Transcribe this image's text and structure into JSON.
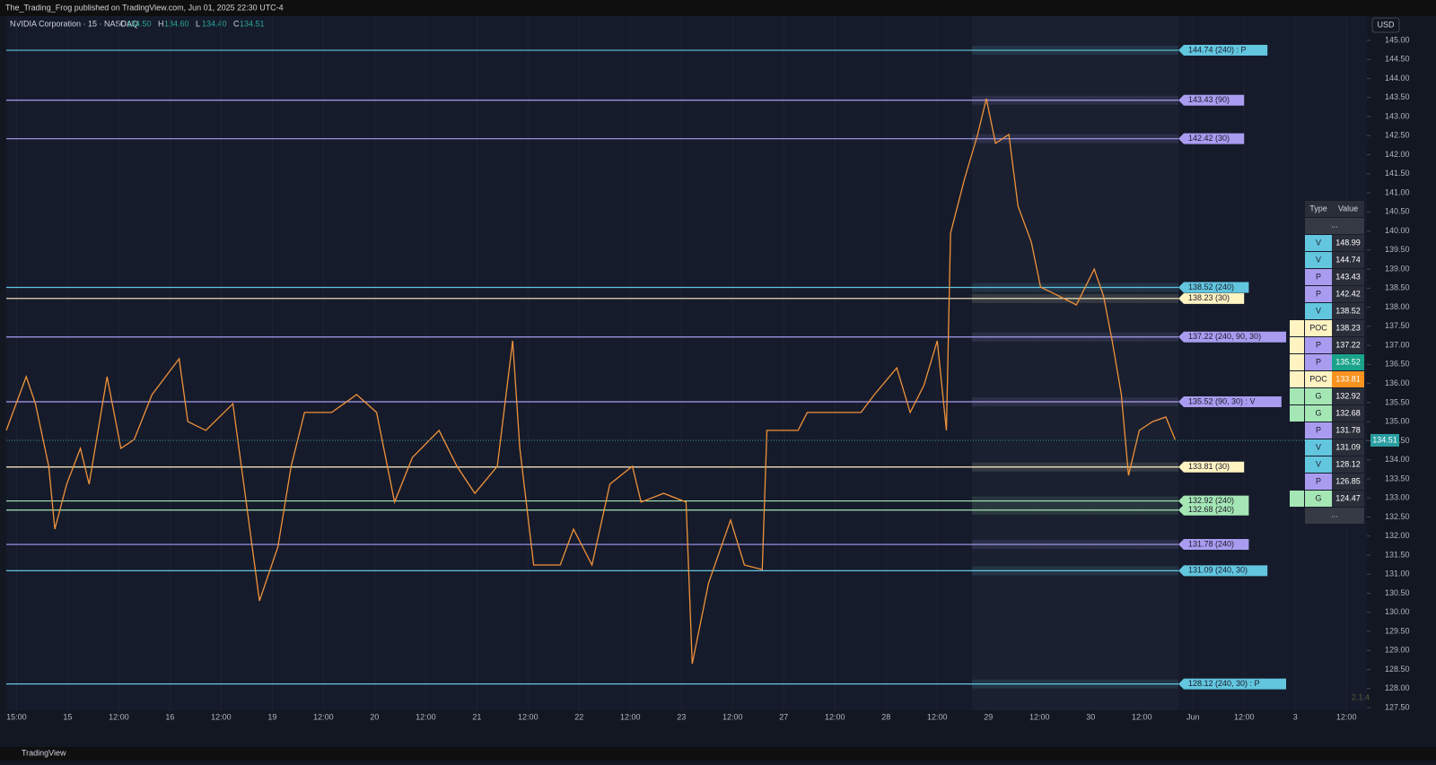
{
  "header": {
    "publisher": "The_Trading_Frog published on TradingView.com, Jun 01, 2025 22:30 UTC-4",
    "footer": "TradingView",
    "version": "2.1.4"
  },
  "chart_data": {
    "type": "line",
    "title": "NVIDIA Corporation · 15 · NASDAQ",
    "ohlc": [
      {
        "key": "O",
        "text": "134.50"
      },
      {
        "key": "H",
        "text": "134.60"
      },
      {
        "key": "L",
        "text": "134.40"
      },
      {
        "key": "C",
        "text": "134.51"
      }
    ],
    "currency": "USD",
    "last_price": {
      "value": 134.51,
      "label": "134.51",
      "color": "#2a9ea0"
    },
    "ylim": [
      127.5,
      145.0
    ],
    "yticks": [
      {
        "value": 127.5,
        "label": "127.50"
      },
      {
        "value": 128,
        "label": "128.00"
      },
      {
        "value": 128.5,
        "label": "128.50"
      },
      {
        "value": 129,
        "label": "129.00"
      },
      {
        "value": 129.5,
        "label": "129.50"
      },
      {
        "value": 130,
        "label": "130.00"
      },
      {
        "value": 130.5,
        "label": "130.50"
      },
      {
        "value": 131,
        "label": "131.00"
      },
      {
        "value": 131.5,
        "label": "131.50"
      },
      {
        "value": 132,
        "label": "132.00"
      },
      {
        "value": 132.5,
        "label": "132.50"
      },
      {
        "value": 133,
        "label": "133.00"
      },
      {
        "value": 133.5,
        "label": "133.50"
      },
      {
        "value": 134,
        "label": "134.00"
      },
      {
        "value": 134.5,
        "label": "134.50"
      },
      {
        "value": 135,
        "label": "135.00"
      },
      {
        "value": 135.5,
        "label": "135.50"
      },
      {
        "value": 136,
        "label": "136.00"
      },
      {
        "value": 136.5,
        "label": "136.50"
      },
      {
        "value": 137,
        "label": "137.00"
      },
      {
        "value": 137.5,
        "label": "137.50"
      },
      {
        "value": 138,
        "label": "138.00"
      },
      {
        "value": 138.5,
        "label": "138.50"
      },
      {
        "value": 139,
        "label": "139.00"
      },
      {
        "value": 139.5,
        "label": "139.50"
      },
      {
        "value": 140,
        "label": "140.00"
      },
      {
        "value": 140.5,
        "label": "140.50"
      },
      {
        "value": 141,
        "label": "141.00"
      },
      {
        "value": 141.5,
        "label": "141.50"
      },
      {
        "value": 142,
        "label": "142.00"
      },
      {
        "value": 142.5,
        "label": "142.50"
      },
      {
        "value": 143,
        "label": "143.00"
      },
      {
        "value": 143.5,
        "label": "143.50"
      },
      {
        "value": 144,
        "label": "144.00"
      },
      {
        "value": 144.5,
        "label": "144.50"
      },
      {
        "value": 145,
        "label": "145.00"
      }
    ],
    "xlim": [
      -0.2,
      26.4
    ],
    "xticks": [
      {
        "value": 0,
        "label": "15:00"
      },
      {
        "value": 1,
        "label": "15"
      },
      {
        "value": 2,
        "label": "12:00"
      },
      {
        "value": 3,
        "label": "16"
      },
      {
        "value": 4,
        "label": "12:00"
      },
      {
        "value": 5,
        "label": "19"
      },
      {
        "value": 6,
        "label": "12:00"
      },
      {
        "value": 7,
        "label": "20"
      },
      {
        "value": 8,
        "label": "12:00"
      },
      {
        "value": 9,
        "label": "21"
      },
      {
        "value": 10,
        "label": "12:00"
      },
      {
        "value": 11,
        "label": "22"
      },
      {
        "value": 12,
        "label": "12:00"
      },
      {
        "value": 13,
        "label": "23"
      },
      {
        "value": 14,
        "label": "12:00"
      },
      {
        "value": 15,
        "label": "27"
      },
      {
        "value": 16,
        "label": "12:00"
      },
      {
        "value": 17,
        "label": "28"
      },
      {
        "value": 18,
        "label": "12:00"
      },
      {
        "value": 19,
        "label": "29"
      },
      {
        "value": 20,
        "label": "12:00"
      },
      {
        "value": 21,
        "label": "30"
      },
      {
        "value": 22,
        "label": "12:00"
      },
      {
        "value": 23,
        "label": "Jun"
      },
      {
        "value": 24,
        "label": "12:00"
      },
      {
        "value": 25,
        "label": "3"
      },
      {
        "value": 26,
        "label": "12:00"
      }
    ],
    "series": [
      {
        "color": "#f0923a",
        "x": [
          -0.2,
          0.19,
          0.37,
          0.63,
          0.75,
          0.98,
          1.25,
          1.42,
          1.77,
          2.04,
          2.3,
          2.65,
          3.18,
          3.35,
          3.7,
          4.23,
          4.49,
          4.75,
          5.11,
          5.37,
          5.63,
          6.16,
          6.65,
          7.04,
          7.39,
          7.74,
          8.26,
          8.61,
          8.96,
          9.4,
          9.7,
          9.84,
          10.11,
          10.63,
          10.89,
          11.25,
          11.6,
          12.04,
          12.21,
          12.65,
          13.09,
          13.21,
          13.53,
          13.96,
          14.23,
          14.58,
          14.67,
          15.28,
          15.46,
          15.98,
          16.51,
          16.77,
          17.21,
          17.47,
          17.74,
          18.0,
          18.18,
          18.26,
          18.53,
          18.79,
          18.96,
          19.14,
          19.4,
          19.58,
          19.84,
          20.02,
          20.37,
          20.72,
          21.07,
          21.25,
          21.42,
          21.6,
          21.74,
          21.95,
          22.21,
          22.47,
          22.65
        ],
        "values": [
          134.77,
          136.18,
          135.47,
          133.83,
          132.18,
          133.36,
          134.3,
          133.36,
          136.18,
          134.3,
          134.53,
          135.71,
          136.65,
          135.0,
          134.77,
          135.47,
          132.89,
          130.3,
          131.71,
          133.83,
          135.24,
          135.24,
          135.71,
          135.24,
          132.89,
          134.06,
          134.77,
          133.83,
          133.12,
          133.83,
          137.12,
          134.3,
          131.24,
          131.24,
          132.18,
          131.24,
          133.36,
          133.83,
          132.89,
          133.12,
          132.89,
          128.65,
          130.77,
          132.42,
          131.24,
          131.12,
          134.77,
          134.77,
          135.24,
          135.24,
          135.24,
          135.71,
          136.41,
          135.24,
          135.95,
          137.12,
          134.77,
          139.94,
          141.35,
          142.53,
          143.47,
          142.3,
          142.53,
          140.65,
          139.71,
          138.53,
          138.3,
          138.06,
          139.0,
          138.3,
          137.12,
          135.71,
          133.59,
          134.77,
          135.0,
          135.12,
          134.53
        ]
      }
    ],
    "levels": [
      {
        "value": 144.74,
        "label": "144.74 (240) : P",
        "color": "#62c6df"
      },
      {
        "value": 143.43,
        "label": "143.43 (90)",
        "color": "#a99cf0"
      },
      {
        "value": 142.42,
        "label": "142.42 (30)",
        "color": "#a99cf0"
      },
      {
        "value": 138.52,
        "label": "138.52 (240)",
        "color": "#62c6df"
      },
      {
        "value": 138.23,
        "label": "138.23 (30)",
        "color": "#fff3c2"
      },
      {
        "value": 137.22,
        "label": "137.22 (240, 90, 30)",
        "color": "#a99cf0"
      },
      {
        "value": 135.52,
        "label": "135.52 (90, 30) : V",
        "color": "#a99cf0"
      },
      {
        "value": 133.81,
        "label": "133.81 (30)",
        "color": "#fff3c2"
      },
      {
        "value": 132.92,
        "label": "132.92 (240)",
        "color": "#a5e6b5"
      },
      {
        "value": 132.68,
        "label": "132.68 (240)",
        "color": "#a5e6b5"
      },
      {
        "value": 131.78,
        "label": "131.78 (240)",
        "color": "#a99cf0"
      },
      {
        "value": 131.09,
        "label": "131.09 (240, 30)",
        "color": "#62c6df"
      },
      {
        "value": 128.12,
        "label": "128.12 (240, 30) : P",
        "color": "#62c6df"
      }
    ]
  },
  "table": {
    "header": [
      "Type",
      "Value"
    ],
    "rows": [
      {
        "cells": [
          "...",
          ""
        ]
      },
      {
        "cells": [
          "V",
          "148.99"
        ]
      },
      {
        "cells": [
          "V",
          "144.74"
        ]
      },
      {
        "cells": [
          "P",
          "143.43"
        ]
      },
      {
        "cells": [
          "P",
          "142.42"
        ]
      },
      {
        "cells": [
          "V",
          "138.52"
        ]
      },
      {
        "cells": [
          "POC",
          "138.23"
        ],
        "marker": "#fff3c2"
      },
      {
        "cells": [
          "P",
          "137.22"
        ],
        "marker": "#fff3c2"
      },
      {
        "cells": [
          "P",
          "135.52"
        ],
        "marker": "#fff3c2",
        "value_color": "#1aa38a"
      },
      {
        "cells": [
          "POC",
          "133.81"
        ],
        "marker": "#fff3c2",
        "value_color": "#f7931e"
      },
      {
        "cells": [
          "G",
          "132.92"
        ],
        "marker": "#a5e6b5"
      },
      {
        "cells": [
          "G",
          "132.68"
        ],
        "marker": "#a5e6b5"
      },
      {
        "cells": [
          "P",
          "131.78"
        ]
      },
      {
        "cells": [
          "V",
          "131.09"
        ]
      },
      {
        "cells": [
          "V",
          "128.12"
        ]
      },
      {
        "cells": [
          "P",
          "126.85"
        ]
      },
      {
        "cells": [
          "G",
          "124.47"
        ],
        "marker": "#a5e6b5"
      },
      {
        "cells": [
          "...",
          ""
        ]
      }
    ]
  }
}
